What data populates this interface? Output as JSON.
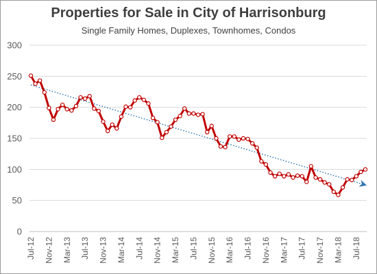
{
  "chart_data": {
    "type": "line",
    "title": "Properties for Sale in City of Harrisonburg",
    "subtitle": "Single Family Homes, Duplexes, Townhomes, Condos",
    "ylim": [
      0,
      300
    ],
    "y_ticks": [
      "0",
      "50",
      "100",
      "150",
      "200",
      "250",
      "300"
    ],
    "x_tick_labels": [
      "Jul-12",
      "Nov-12",
      "Mar-13",
      "Jul-13",
      "Nov-13",
      "Mar-14",
      "Jul-14",
      "Nov-14",
      "Mar-15",
      "Jul-15",
      "Nov-15",
      "Mar-16",
      "Jul-16",
      "Nov-16",
      "Mar-17",
      "Jul-17",
      "Nov-17",
      "Mar-18",
      "Jul-18"
    ],
    "grid": true,
    "legend": "none",
    "series": [
      {
        "color": "#c00000",
        "marker": "circle",
        "values": [
          251,
          238,
          243,
          224,
          199,
          180,
          197,
          204,
          197,
          195,
          202,
          216,
          214,
          218,
          198,
          194,
          177,
          162,
          172,
          166,
          185,
          201,
          200,
          211,
          216,
          212,
          206,
          183,
          176,
          151,
          160,
          169,
          180,
          186,
          198,
          190,
          190,
          188,
          189,
          160,
          170,
          150,
          137,
          136,
          153,
          153,
          148,
          150,
          149,
          142,
          135,
          113,
          108,
          95,
          89,
          93,
          89,
          92,
          87,
          90,
          89,
          80,
          105,
          87,
          84,
          79,
          76,
          64,
          59,
          71,
          84,
          83,
          89,
          96,
          100
        ]
      },
      {
        "type": "trendline",
        "style": "dotted",
        "color": "#2e75b6",
        "start": 236,
        "end": 75
      }
    ]
  }
}
